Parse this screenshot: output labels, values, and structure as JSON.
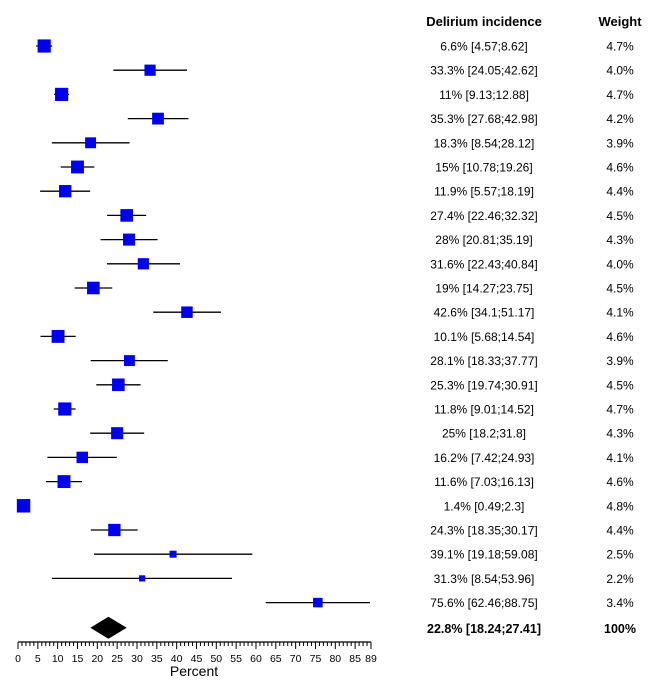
{
  "chart_data": {
    "type": "forest",
    "columns": {
      "incidence_header": "Delirium incidence",
      "weight_header": "Weight"
    },
    "xlabel": "Percent",
    "xlim": [
      0,
      89
    ],
    "x_ticks": [
      0,
      5,
      10,
      15,
      20,
      25,
      30,
      35,
      40,
      45,
      50,
      55,
      60,
      65,
      70,
      75,
      80,
      85,
      89
    ],
    "studies": [
      {
        "est": 6.6,
        "lo": 4.57,
        "hi": 8.62,
        "ci_text": "6.6% [4.57;8.62]",
        "weight": 4.7,
        "weight_text": "4.7%"
      },
      {
        "est": 33.3,
        "lo": 24.05,
        "hi": 42.62,
        "ci_text": "33.3% [24.05;42.62]",
        "weight": 4.0,
        "weight_text": "4.0%"
      },
      {
        "est": 11,
        "lo": 9.13,
        "hi": 12.88,
        "ci_text": "11% [9.13;12.88]",
        "weight": 4.7,
        "weight_text": "4.7%"
      },
      {
        "est": 35.3,
        "lo": 27.68,
        "hi": 42.98,
        "ci_text": "35.3% [27.68;42.98]",
        "weight": 4.2,
        "weight_text": "4.2%"
      },
      {
        "est": 18.3,
        "lo": 8.54,
        "hi": 28.12,
        "ci_text": "18.3% [8.54;28.12]",
        "weight": 3.9,
        "weight_text": "3.9%"
      },
      {
        "est": 15,
        "lo": 10.78,
        "hi": 19.26,
        "ci_text": "15% [10.78;19.26]",
        "weight": 4.6,
        "weight_text": "4.6%"
      },
      {
        "est": 11.9,
        "lo": 5.57,
        "hi": 18.19,
        "ci_text": "11.9% [5.57;18.19]",
        "weight": 4.4,
        "weight_text": "4.4%"
      },
      {
        "est": 27.4,
        "lo": 22.46,
        "hi": 32.32,
        "ci_text": "27.4% [22.46;32.32]",
        "weight": 4.5,
        "weight_text": "4.5%"
      },
      {
        "est": 28,
        "lo": 20.81,
        "hi": 35.19,
        "ci_text": "28% [20.81;35.19]",
        "weight": 4.3,
        "weight_text": "4.3%"
      },
      {
        "est": 31.6,
        "lo": 22.43,
        "hi": 40.84,
        "ci_text": "31.6% [22.43;40.84]",
        "weight": 4.0,
        "weight_text": "4.0%"
      },
      {
        "est": 19,
        "lo": 14.27,
        "hi": 23.75,
        "ci_text": "19% [14.27;23.75]",
        "weight": 4.5,
        "weight_text": "4.5%"
      },
      {
        "est": 42.6,
        "lo": 34.1,
        "hi": 51.17,
        "ci_text": "42.6% [34.1;51.17]",
        "weight": 4.1,
        "weight_text": "4.1%"
      },
      {
        "est": 10.1,
        "lo": 5.68,
        "hi": 14.54,
        "ci_text": "10.1% [5.68;14.54]",
        "weight": 4.6,
        "weight_text": "4.6%"
      },
      {
        "est": 28.1,
        "lo": 18.33,
        "hi": 37.77,
        "ci_text": "28.1% [18.33;37.77]",
        "weight": 3.9,
        "weight_text": "3.9%"
      },
      {
        "est": 25.3,
        "lo": 19.74,
        "hi": 30.91,
        "ci_text": "25.3% [19.74;30.91]",
        "weight": 4.5,
        "weight_text": "4.5%"
      },
      {
        "est": 11.8,
        "lo": 9.01,
        "hi": 14.52,
        "ci_text": "11.8% [9.01;14.52]",
        "weight": 4.7,
        "weight_text": "4.7%"
      },
      {
        "est": 25,
        "lo": 18.2,
        "hi": 31.8,
        "ci_text": "25% [18.2;31.8]",
        "weight": 4.3,
        "weight_text": "4.3%"
      },
      {
        "est": 16.2,
        "lo": 7.42,
        "hi": 24.93,
        "ci_text": "16.2% [7.42;24.93]",
        "weight": 4.1,
        "weight_text": "4.1%"
      },
      {
        "est": 11.6,
        "lo": 7.03,
        "hi": 16.13,
        "ci_text": "11.6% [7.03;16.13]",
        "weight": 4.6,
        "weight_text": "4.6%"
      },
      {
        "est": 1.4,
        "lo": 0.49,
        "hi": 2.3,
        "ci_text": "1.4% [0.49;2.3]",
        "weight": 4.8,
        "weight_text": "4.8%"
      },
      {
        "est": 24.3,
        "lo": 18.35,
        "hi": 30.17,
        "ci_text": "24.3% [18.35;30.17]",
        "weight": 4.4,
        "weight_text": "4.4%"
      },
      {
        "est": 39.1,
        "lo": 19.18,
        "hi": 59.08,
        "ci_text": "39.1% [19.18;59.08]",
        "weight": 2.5,
        "weight_text": "2.5%"
      },
      {
        "est": 31.3,
        "lo": 8.54,
        "hi": 53.96,
        "ci_text": "31.3% [8.54;53.96]",
        "weight": 2.2,
        "weight_text": "2.2%"
      },
      {
        "est": 75.6,
        "lo": 62.46,
        "hi": 88.75,
        "ci_text": "75.6% [62.46;88.75]",
        "weight": 3.4,
        "weight_text": "3.4%"
      }
    ],
    "summary": {
      "est": 22.8,
      "lo": 18.24,
      "hi": 27.41,
      "ci_text": "22.8% [18.24;27.41]",
      "weight_text": "100%"
    },
    "colors": {
      "marker": "#0000ee",
      "line": "#000000",
      "diamond": "#000000"
    }
  }
}
